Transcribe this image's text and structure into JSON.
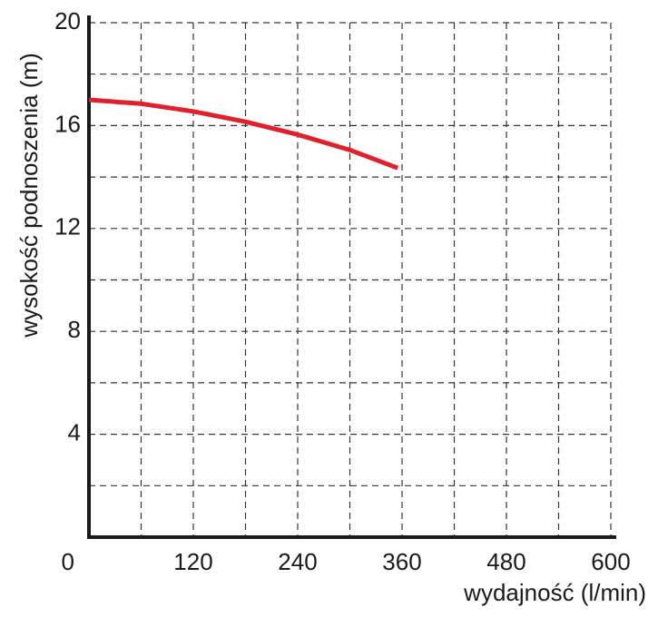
{
  "chart_data": {
    "type": "line",
    "x_label": "wydajność (l/min)",
    "y_label": "wysokość podnoszenia (m)",
    "x": [
      0,
      60,
      120,
      180,
      240,
      300,
      355
    ],
    "series": [
      {
        "color": "#e0202a",
        "values": [
          17.0,
          16.85,
          16.55,
          16.15,
          15.65,
          15.05,
          14.35
        ]
      }
    ],
    "xlim": [
      0,
      600
    ],
    "ylim": [
      0,
      20
    ],
    "xticks": [
      0,
      120,
      240,
      360,
      480,
      600
    ],
    "yticks": [
      4,
      8,
      12,
      16,
      20
    ],
    "xminorticks": [
      60,
      180,
      300,
      420,
      540
    ],
    "yminorticks": [
      2,
      6,
      10,
      14,
      18
    ],
    "grid": true
  }
}
